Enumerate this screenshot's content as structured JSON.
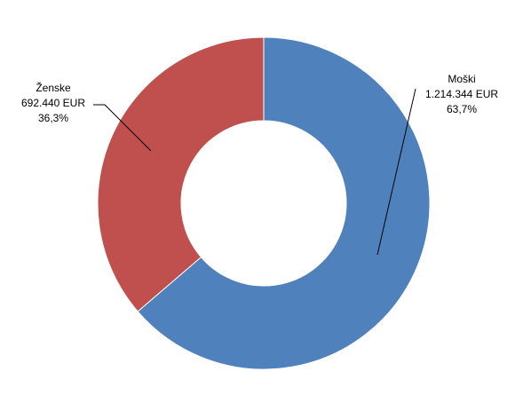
{
  "chart_data": {
    "type": "donut",
    "categories": [
      "Moški",
      "Ženske"
    ],
    "values": [
      1214344,
      692440
    ],
    "value_labels": [
      "1.214.344 EUR",
      "692.440 EUR"
    ],
    "percents": [
      63.7,
      36.3
    ],
    "percent_labels": [
      "63,7%",
      "36,3%"
    ],
    "colors": [
      "#4f81bd",
      "#c0504d"
    ]
  }
}
